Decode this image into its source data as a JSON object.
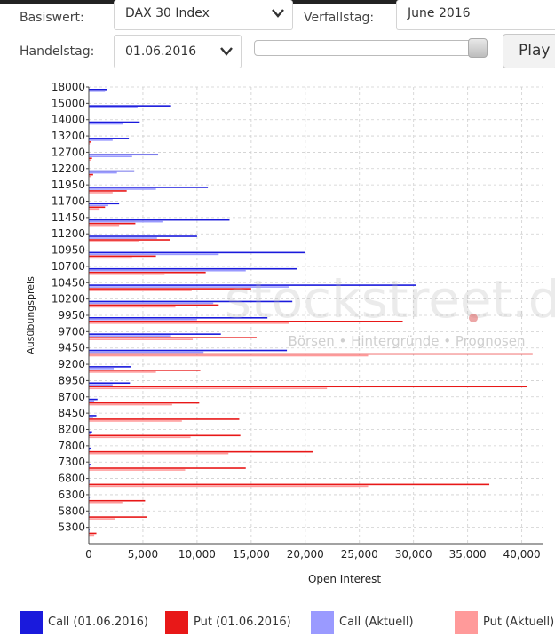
{
  "controls": {
    "basiswert_label": "Basiswert:",
    "basiswert_value": "DAX 30 Index",
    "verfallstag_label": "Verfallstag:",
    "verfallstag_value": "June 2016",
    "handelstag_label": "Handelstag:",
    "handelstag_value": "01.06.2016",
    "slider_value": 0.92,
    "play_label": "Play"
  },
  "watermark": {
    "brand": "stockstreet.de",
    "tagline": "Börsen • Hintergründe • Prognosen"
  },
  "colors": {
    "call_date": "#1a1adc",
    "put_date": "#e81818",
    "call_current": "#9a9aff",
    "put_current": "#ff9a9a"
  },
  "chart_data": {
    "type": "bar",
    "orientation": "horizontal",
    "xlabel": "Open Interest",
    "ylabel": "Ausübungspreis",
    "xlim": [
      0,
      42000
    ],
    "x_ticks": [
      "0",
      "5,000",
      "10,000",
      "15,000",
      "20,000",
      "25,000",
      "30,000",
      "35,000",
      "40,000"
    ],
    "y_tick_labels": [
      "18000",
      "15000",
      "14000",
      "13200",
      "12700",
      "12200",
      "11950",
      "11700",
      "11450",
      "11200",
      "10950",
      "10700",
      "10450",
      "10200",
      "9950",
      "9700",
      "9450",
      "9200",
      "8950",
      "8700",
      "8450",
      "8200",
      "7800",
      "7300",
      "6800",
      "6300",
      "5800",
      "5300"
    ],
    "strikes": [
      "18000",
      "15000",
      "14000",
      "13200",
      "12700",
      "12200",
      "11950",
      "11700",
      "11450",
      "11200",
      "10950",
      "10700",
      "10450",
      "10200",
      "9950",
      "9700",
      "9450",
      "9200",
      "8950",
      "8700",
      "8450",
      "8200",
      "7800",
      "7300",
      "6800",
      "6300",
      "5800",
      "5300"
    ],
    "series": [
      {
        "name": "Call (01.06.2016)",
        "values": [
          1700,
          7600,
          4700,
          3700,
          6400,
          4200,
          11000,
          2800,
          13000,
          10000,
          20000,
          19200,
          30200,
          18800,
          16500,
          12200,
          18300,
          3900,
          3800,
          800,
          700,
          300,
          200,
          200,
          100,
          100,
          50,
          50
        ]
      },
      {
        "name": "Put (01.06.2016)",
        "values": [
          0,
          0,
          0,
          200,
          300,
          400,
          3500,
          1500,
          4300,
          7500,
          6200,
          10800,
          15000,
          12000,
          29000,
          15500,
          41000,
          10300,
          40500,
          10200,
          13900,
          14000,
          20700,
          14500,
          37000,
          5200,
          5400,
          700
        ]
      },
      {
        "name": "Call (Aktuell)",
        "values": [
          1500,
          4500,
          3200,
          2200,
          4000,
          2600,
          6200,
          1800,
          6800,
          6300,
          12000,
          14500,
          18500,
          11500,
          10000,
          7600,
          10600,
          2300,
          2200,
          500,
          400,
          200,
          100,
          100,
          50,
          50,
          30,
          30
        ]
      },
      {
        "name": "Put (Aktuell)",
        "values": [
          0,
          0,
          0,
          100,
          200,
          250,
          2200,
          1000,
          2800,
          4600,
          4000,
          7000,
          9500,
          8000,
          18500,
          9600,
          25800,
          6200,
          22000,
          7700,
          8600,
          9400,
          12900,
          8900,
          25800,
          3100,
          2400,
          500
        ]
      }
    ]
  },
  "legend": [
    {
      "label": "Call (01.06.2016)"
    },
    {
      "label": "Put (01.06.2016)"
    },
    {
      "label": "Call (Aktuell)"
    },
    {
      "label": "Put (Aktuell)"
    }
  ]
}
